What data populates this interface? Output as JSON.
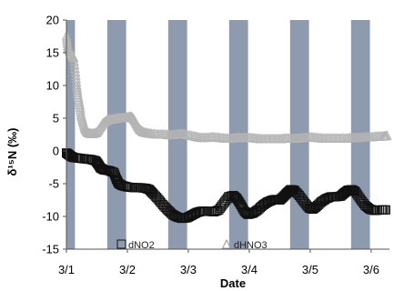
{
  "chart_data": {
    "type": "scatter",
    "xlabel": "Date",
    "ylabel": "δ¹⁵N (‰)",
    "ylim": [
      -15,
      20
    ],
    "y_ticks": [
      20,
      15,
      10,
      5,
      0,
      -5,
      -10,
      -15
    ],
    "xlim": [
      0,
      5.3
    ],
    "x_ticks": [
      {
        "value": 0,
        "label": "3/1"
      },
      {
        "value": 1,
        "label": "3/2"
      },
      {
        "value": 2,
        "label": "3/3"
      },
      {
        "value": 3,
        "label": "3/4"
      },
      {
        "value": 4,
        "label": "3/5"
      },
      {
        "value": 5,
        "label": "3/6"
      }
    ],
    "grid": false,
    "legend_position": "bottom",
    "night_bands": [
      [
        0,
        0.14
      ],
      [
        0.67,
        0.98
      ],
      [
        1.67,
        1.98
      ],
      [
        2.67,
        2.98
      ],
      [
        3.67,
        3.98
      ],
      [
        4.67,
        4.98
      ]
    ],
    "band_color": "#8e9aae",
    "series": [
      {
        "name": "dNO2",
        "marker": "square",
        "color": "#111111",
        "points": [
          [
            0.0,
            -0.3
          ],
          [
            0.03,
            -0.5
          ],
          [
            0.07,
            -0.8
          ],
          [
            0.12,
            -1.0
          ],
          [
            0.2,
            -1.1
          ],
          [
            0.3,
            -1.2
          ],
          [
            0.4,
            -1.3
          ],
          [
            0.48,
            -1.5
          ],
          [
            0.52,
            -2.0
          ],
          [
            0.56,
            -2.6
          ],
          [
            0.62,
            -2.9
          ],
          [
            0.7,
            -3.0
          ],
          [
            0.78,
            -3.3
          ],
          [
            0.82,
            -4.3
          ],
          [
            0.86,
            -5.0
          ],
          [
            0.92,
            -5.3
          ],
          [
            1.0,
            -5.5
          ],
          [
            1.1,
            -5.6
          ],
          [
            1.2,
            -5.6
          ],
          [
            1.3,
            -5.7
          ],
          [
            1.36,
            -5.9
          ],
          [
            1.42,
            -6.5
          ],
          [
            1.5,
            -7.3
          ],
          [
            1.58,
            -8.2
          ],
          [
            1.66,
            -9.0
          ],
          [
            1.74,
            -9.7
          ],
          [
            1.82,
            -10.1
          ],
          [
            1.9,
            -10.3
          ],
          [
            1.98,
            -10.2
          ],
          [
            2.06,
            -9.8
          ],
          [
            2.14,
            -9.4
          ],
          [
            2.22,
            -9.2
          ],
          [
            2.32,
            -9.2
          ],
          [
            2.42,
            -9.3
          ],
          [
            2.5,
            -9.0
          ],
          [
            2.58,
            -8.0
          ],
          [
            2.66,
            -7.0
          ],
          [
            2.74,
            -6.8
          ],
          [
            2.8,
            -7.3
          ],
          [
            2.86,
            -8.2
          ],
          [
            2.92,
            -9.2
          ],
          [
            2.98,
            -9.7
          ],
          [
            3.06,
            -9.5
          ],
          [
            3.14,
            -9.0
          ],
          [
            3.22,
            -8.3
          ],
          [
            3.3,
            -7.8
          ],
          [
            3.38,
            -7.5
          ],
          [
            3.44,
            -7.4
          ],
          [
            3.5,
            -7.5
          ],
          [
            3.56,
            -7.0
          ],
          [
            3.62,
            -6.4
          ],
          [
            3.68,
            -5.9
          ],
          [
            3.74,
            -6.0
          ],
          [
            3.82,
            -6.8
          ],
          [
            3.9,
            -7.8
          ],
          [
            3.98,
            -8.7
          ],
          [
            4.04,
            -8.9
          ],
          [
            4.1,
            -8.5
          ],
          [
            4.18,
            -7.8
          ],
          [
            4.26,
            -7.3
          ],
          [
            4.34,
            -7.0
          ],
          [
            4.42,
            -7.0
          ],
          [
            4.5,
            -6.9
          ],
          [
            4.56,
            -6.4
          ],
          [
            4.62,
            -6.0
          ],
          [
            4.68,
            -5.9
          ],
          [
            4.74,
            -6.2
          ],
          [
            4.82,
            -7.3
          ],
          [
            4.9,
            -8.3
          ],
          [
            4.98,
            -8.9
          ],
          [
            5.06,
            -9.1
          ],
          [
            5.16,
            -9.0
          ],
          [
            5.24,
            -9.0
          ]
        ]
      },
      {
        "name": "dHNO3",
        "marker": "triangle",
        "color": "#b4b4b4",
        "points": [
          [
            0.0,
            17.5
          ],
          [
            0.02,
            16.0
          ],
          [
            0.05,
            15.3
          ],
          [
            0.09,
            14.7
          ],
          [
            0.12,
            14.2
          ],
          [
            0.15,
            12.0
          ],
          [
            0.17,
            10.0
          ],
          [
            0.19,
            8.5
          ],
          [
            0.22,
            7.0
          ],
          [
            0.24,
            5.5
          ],
          [
            0.27,
            4.5
          ],
          [
            0.3,
            3.5
          ],
          [
            0.33,
            3.0
          ],
          [
            0.36,
            2.7
          ],
          [
            0.4,
            2.6
          ],
          [
            0.45,
            2.6
          ],
          [
            0.5,
            2.8
          ],
          [
            0.55,
            3.5
          ],
          [
            0.6,
            4.2
          ],
          [
            0.66,
            4.6
          ],
          [
            0.72,
            4.8
          ],
          [
            0.8,
            4.9
          ],
          [
            0.88,
            5.0
          ],
          [
            0.95,
            5.0
          ],
          [
            1.0,
            5.1
          ],
          [
            1.05,
            5.2
          ],
          [
            1.08,
            5.1
          ],
          [
            1.12,
            4.6
          ],
          [
            1.16,
            3.9
          ],
          [
            1.2,
            3.3
          ],
          [
            1.25,
            2.9
          ],
          [
            1.32,
            2.7
          ],
          [
            1.4,
            2.6
          ],
          [
            1.5,
            2.5
          ],
          [
            1.6,
            2.5
          ],
          [
            1.7,
            2.4
          ],
          [
            1.8,
            2.5
          ],
          [
            1.9,
            2.6
          ],
          [
            2.0,
            2.4
          ],
          [
            2.1,
            2.2
          ],
          [
            2.2,
            2.0
          ],
          [
            2.3,
            2.0
          ],
          [
            2.4,
            2.1
          ],
          [
            2.5,
            2.0
          ],
          [
            2.6,
            1.9
          ],
          [
            2.7,
            1.9
          ],
          [
            2.8,
            2.0
          ],
          [
            2.9,
            2.0
          ],
          [
            3.0,
            2.0
          ],
          [
            3.1,
            1.9
          ],
          [
            3.2,
            1.8
          ],
          [
            3.3,
            1.8
          ],
          [
            3.4,
            1.8
          ],
          [
            3.5,
            1.8
          ],
          [
            3.6,
            1.9
          ],
          [
            3.7,
            1.9
          ],
          [
            3.8,
            1.9
          ],
          [
            3.9,
            2.0
          ],
          [
            4.0,
            2.1
          ],
          [
            4.1,
            2.0
          ],
          [
            4.2,
            1.9
          ],
          [
            4.3,
            1.9
          ],
          [
            4.4,
            1.9
          ],
          [
            4.5,
            1.9
          ],
          [
            4.6,
            1.9
          ],
          [
            4.7,
            2.0
          ],
          [
            4.8,
            2.0
          ],
          [
            4.9,
            2.1
          ],
          [
            5.0,
            2.1
          ],
          [
            5.1,
            2.2
          ],
          [
            5.2,
            2.2
          ],
          [
            5.26,
            2.3
          ]
        ]
      }
    ]
  }
}
